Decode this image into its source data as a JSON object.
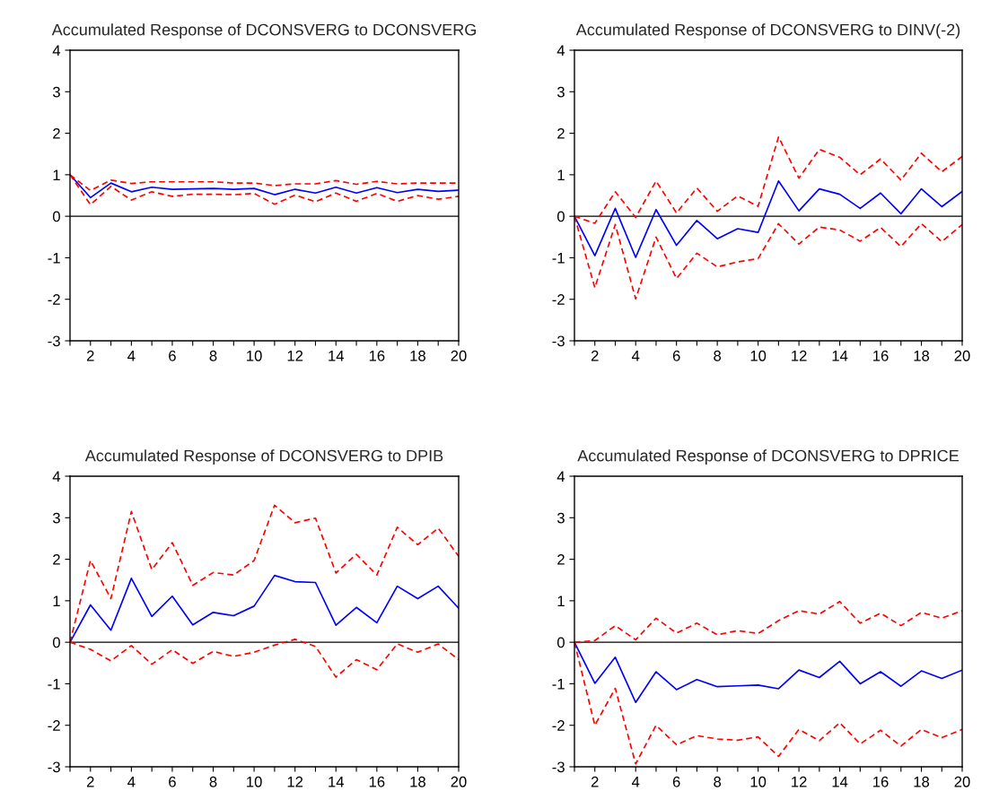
{
  "chart_data": [
    {
      "type": "line",
      "title": "Accumulated Response of DCONSVERG to DCONSVERG",
      "x": [
        1,
        2,
        3,
        4,
        5,
        6,
        7,
        8,
        9,
        10,
        11,
        12,
        13,
        14,
        15,
        16,
        17,
        18,
        19,
        20
      ],
      "xlim": [
        1,
        20
      ],
      "ylim": [
        -3,
        4
      ],
      "yticks": [
        -3,
        -2,
        -1,
        0,
        1,
        2,
        3,
        4
      ],
      "xticks": [
        {
          "value": 1,
          "label": null
        },
        2,
        {
          "value": 3,
          "label": null
        },
        4,
        {
          "value": 5,
          "label": null
        },
        6,
        {
          "value": 7,
          "label": null
        },
        8,
        {
          "value": 9,
          "label": null
        },
        10,
        {
          "value": 11,
          "label": null
        },
        12,
        {
          "value": 13,
          "label": null
        },
        14,
        {
          "value": 15,
          "label": null
        },
        16,
        {
          "value": 17,
          "label": null
        },
        18,
        {
          "value": 19,
          "label": null
        },
        20
      ],
      "grid": false,
      "legend": false,
      "ref_lines": [
        {
          "axis": "y",
          "value": 0,
          "color": "#000000"
        }
      ],
      "series": [
        {
          "color": "#0000ff",
          "line_style": "solid",
          "values": [
            1,
            0.45,
            0.8,
            0.59,
            0.7,
            0.65,
            0.66,
            0.67,
            0.65,
            0.67,
            0.52,
            0.65,
            0.56,
            0.7,
            0.56,
            0.69,
            0.57,
            0.65,
            0.6,
            0.63
          ]
        },
        {
          "color": "#ff0000",
          "line_style": "dashed",
          "values": [
            1,
            0.62,
            0.87,
            0.79,
            0.83,
            0.83,
            0.83,
            0.83,
            0.8,
            0.8,
            0.74,
            0.78,
            0.78,
            0.86,
            0.77,
            0.84,
            0.78,
            0.8,
            0.8,
            0.8
          ]
        },
        {
          "color": "#ff0000",
          "line_style": "dashed",
          "values": [
            1,
            0.28,
            0.72,
            0.39,
            0.59,
            0.48,
            0.53,
            0.53,
            0.52,
            0.55,
            0.29,
            0.51,
            0.35,
            0.56,
            0.36,
            0.55,
            0.36,
            0.5,
            0.41,
            0.48
          ]
        }
      ]
    },
    {
      "type": "line",
      "title": "Accumulated Response of DCONSVERG to DINV(-2)",
      "x": [
        1,
        2,
        3,
        4,
        5,
        6,
        7,
        8,
        9,
        10,
        11,
        12,
        13,
        14,
        15,
        16,
        17,
        18,
        19,
        20
      ],
      "xlim": [
        1,
        20
      ],
      "ylim": [
        -3,
        4
      ],
      "yticks": [
        -3,
        -2,
        -1,
        0,
        1,
        2,
        3,
        4
      ],
      "xticks": [
        {
          "value": 1,
          "label": null
        },
        2,
        {
          "value": 3,
          "label": null
        },
        4,
        {
          "value": 5,
          "label": null
        },
        6,
        {
          "value": 7,
          "label": null
        },
        8,
        {
          "value": 9,
          "label": null
        },
        10,
        {
          "value": 11,
          "label": null
        },
        12,
        {
          "value": 13,
          "label": null
        },
        14,
        {
          "value": 15,
          "label": null
        },
        16,
        {
          "value": 17,
          "label": null
        },
        18,
        {
          "value": 19,
          "label": null
        },
        20
      ],
      "grid": false,
      "legend": false,
      "ref_lines": [
        {
          "axis": "y",
          "value": 0,
          "color": "#000000"
        }
      ],
      "series": [
        {
          "color": "#0000ff",
          "line_style": "solid",
          "values": [
            0,
            -0.95,
            0.19,
            -0.99,
            0.16,
            -0.7,
            -0.1,
            -0.54,
            -0.3,
            -0.39,
            0.85,
            0.13,
            0.66,
            0.53,
            0.19,
            0.56,
            0.06,
            0.66,
            0.23,
            0.6
          ]
        },
        {
          "color": "#ff0000",
          "line_style": "dashed",
          "values": [
            0,
            -0.17,
            0.59,
            -0.03,
            0.85,
            0.08,
            0.68,
            0.12,
            0.49,
            0.24,
            1.91,
            0.92,
            1.61,
            1.42,
            1.0,
            1.38,
            0.87,
            1.52,
            1.07,
            1.44
          ]
        },
        {
          "color": "#ff0000",
          "line_style": "dashed",
          "values": [
            0,
            -1.72,
            -0.2,
            -1.99,
            -0.5,
            -1.5,
            -0.89,
            -1.22,
            -1.1,
            -1.02,
            -0.18,
            -0.67,
            -0.26,
            -0.33,
            -0.6,
            -0.27,
            -0.73,
            -0.18,
            -0.61,
            -0.2
          ]
        }
      ]
    },
    {
      "type": "line",
      "title": "Accumulated Response of DCONSVERG to DPIB",
      "x": [
        1,
        2,
        3,
        4,
        5,
        6,
        7,
        8,
        9,
        10,
        11,
        12,
        13,
        14,
        15,
        16,
        17,
        18,
        19,
        20
      ],
      "xlim": [
        1,
        20
      ],
      "ylim": [
        -3,
        4
      ],
      "yticks": [
        -3,
        -2,
        -1,
        0,
        1,
        2,
        3,
        4
      ],
      "xticks": [
        {
          "value": 1,
          "label": null
        },
        2,
        {
          "value": 3,
          "label": null
        },
        4,
        {
          "value": 5,
          "label": null
        },
        6,
        {
          "value": 7,
          "label": null
        },
        8,
        {
          "value": 9,
          "label": null
        },
        10,
        {
          "value": 11,
          "label": null
        },
        12,
        {
          "value": 13,
          "label": null
        },
        14,
        {
          "value": 15,
          "label": null
        },
        16,
        {
          "value": 17,
          "label": null
        },
        18,
        {
          "value": 19,
          "label": null
        },
        20
      ],
      "grid": false,
      "legend": false,
      "ref_lines": [
        {
          "axis": "y",
          "value": 0,
          "color": "#000000"
        }
      ],
      "series": [
        {
          "color": "#0000ff",
          "line_style": "solid",
          "values": [
            0,
            0.9,
            0.29,
            1.54,
            0.62,
            1.11,
            0.42,
            0.72,
            0.64,
            0.87,
            1.61,
            1.46,
            1.44,
            0.41,
            0.84,
            0.47,
            1.35,
            1.05,
            1.35,
            0.82
          ]
        },
        {
          "color": "#ff0000",
          "line_style": "dashed",
          "values": [
            0,
            1.97,
            1.05,
            3.15,
            1.75,
            2.4,
            1.37,
            1.68,
            1.62,
            1.97,
            3.3,
            2.88,
            2.99,
            1.67,
            2.12,
            1.62,
            2.77,
            2.35,
            2.75,
            2.07
          ]
        },
        {
          "color": "#ff0000",
          "line_style": "dashed",
          "values": [
            0,
            -0.17,
            -0.45,
            -0.08,
            -0.53,
            -0.18,
            -0.51,
            -0.22,
            -0.34,
            -0.24,
            -0.07,
            0.07,
            -0.1,
            -0.84,
            -0.42,
            -0.66,
            -0.04,
            -0.24,
            -0.04,
            -0.42
          ]
        }
      ]
    },
    {
      "type": "line",
      "title": "Accumulated Response of DCONSVERG to DPRICE",
      "x": [
        1,
        2,
        3,
        4,
        5,
        6,
        7,
        8,
        9,
        10,
        11,
        12,
        13,
        14,
        15,
        16,
        17,
        18,
        19,
        20
      ],
      "xlim": [
        1,
        20
      ],
      "ylim": [
        -3,
        4
      ],
      "yticks": [
        -3,
        -2,
        -1,
        0,
        1,
        2,
        3,
        4
      ],
      "xticks": [
        {
          "value": 1,
          "label": null
        },
        2,
        {
          "value": 3,
          "label": null
        },
        4,
        {
          "value": 5,
          "label": null
        },
        6,
        {
          "value": 7,
          "label": null
        },
        8,
        {
          "value": 9,
          "label": null
        },
        10,
        {
          "value": 11,
          "label": null
        },
        12,
        {
          "value": 13,
          "label": null
        },
        14,
        {
          "value": 15,
          "label": null
        },
        16,
        {
          "value": 17,
          "label": null
        },
        18,
        {
          "value": 19,
          "label": null
        },
        20
      ],
      "grid": false,
      "legend": false,
      "ref_lines": [
        {
          "axis": "y",
          "value": 0,
          "color": "#000000"
        }
      ],
      "series": [
        {
          "color": "#0000ff",
          "line_style": "solid",
          "values": [
            0,
            -0.99,
            -0.36,
            -1.45,
            -0.71,
            -1.14,
            -0.9,
            -1.07,
            -1.05,
            -1.03,
            -1.12,
            -0.67,
            -0.85,
            -0.46,
            -1.0,
            -0.71,
            -1.06,
            -0.69,
            -0.87,
            -0.67
          ]
        },
        {
          "color": "#ff0000",
          "line_style": "dashed",
          "values": [
            0,
            0.04,
            0.4,
            0.06,
            0.58,
            0.22,
            0.46,
            0.18,
            0.28,
            0.21,
            0.52,
            0.76,
            0.68,
            0.98,
            0.46,
            0.7,
            0.4,
            0.72,
            0.58,
            0.76
          ]
        },
        {
          "color": "#ff0000",
          "line_style": "dashed",
          "values": [
            0,
            -2.0,
            -1.11,
            -2.93,
            -2.0,
            -2.47,
            -2.25,
            -2.33,
            -2.36,
            -2.28,
            -2.75,
            -2.1,
            -2.37,
            -1.94,
            -2.45,
            -2.12,
            -2.5,
            -2.1,
            -2.3,
            -2.1
          ]
        }
      ]
    }
  ]
}
